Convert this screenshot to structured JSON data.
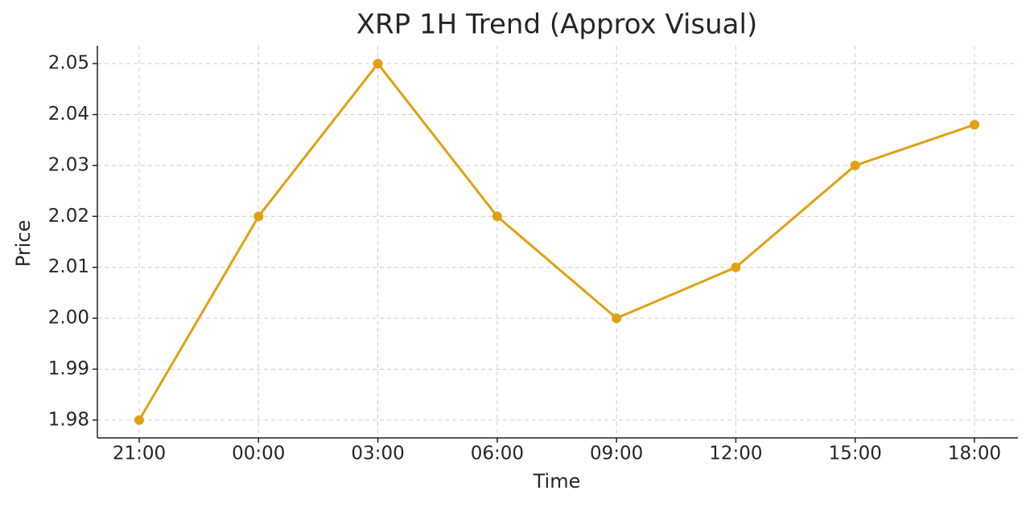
{
  "chart_data": {
    "type": "line",
    "title": "XRP 1H Trend (Approx Visual)",
    "x_label": "Time",
    "y_label": "Price",
    "categories": [
      "21:00",
      "00:00",
      "03:00",
      "06:00",
      "09:00",
      "12:00",
      "15:00",
      "18:00"
    ],
    "series": [
      {
        "name": "XRP",
        "color": "#e0a112",
        "values": [
          1.98,
          2.02,
          2.05,
          2.02,
          2.0,
          2.01,
          2.03,
          2.038
        ]
      }
    ],
    "ylim": [
      1.9765,
      2.0535
    ],
    "yticks": [
      1.98,
      1.99,
      {
        "value": 2.0,
        "label": "2.00"
      },
      2.01,
      2.02,
      2.03,
      2.04,
      2.05
    ],
    "grid": true
  }
}
